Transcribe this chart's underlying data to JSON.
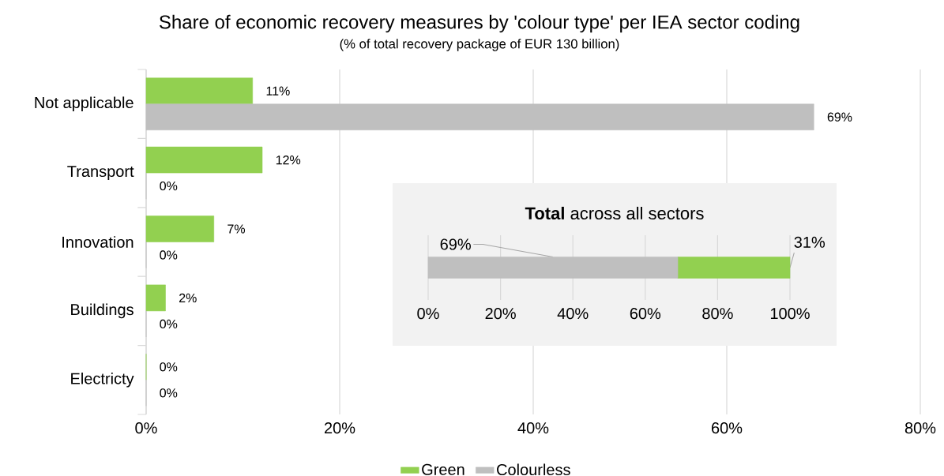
{
  "chart_data": [
    {
      "type": "bar",
      "orientation": "horizontal",
      "title": "Share of economic recovery measures by 'colour type' per IEA sector coding",
      "subtitle": "(% of total recovery package of EUR 130 billion)",
      "categories": [
        "Not applicable",
        "Transport",
        "Innovation",
        "Buildings",
        "Electricty"
      ],
      "series": [
        {
          "name": "Green",
          "color": "#92d050",
          "values": [
            11,
            12,
            7,
            2,
            0
          ],
          "value_labels": [
            "11%",
            "12%",
            "7%",
            "2%",
            "0%"
          ]
        },
        {
          "name": "Colourless",
          "color": "#bfbfbf",
          "values": [
            69,
            0,
            0,
            0,
            0
          ],
          "value_labels": [
            "69%",
            "0%",
            "0%",
            "0%",
            "0%"
          ]
        }
      ],
      "xlim": [
        0,
        80
      ],
      "xticks": [
        {
          "value": 0,
          "label": "0%"
        },
        {
          "value": 20,
          "label": "20%"
        },
        {
          "value": 40,
          "label": "40%"
        },
        {
          "value": 60,
          "label": "60%"
        },
        {
          "value": 80,
          "label": "80%"
        }
      ],
      "grid": "x",
      "legend": "bottom"
    },
    {
      "type": "bar",
      "orientation": "horizontal",
      "stacked": true,
      "title": "**Total** across all sectors",
      "categories": [
        null
      ],
      "series": [
        {
          "color": "#bfbfbf",
          "values": [
            69
          ],
          "value_labels": [
            "69%"
          ]
        },
        {
          "color": "#92d050",
          "values": [
            31
          ],
          "value_labels": [
            "31%"
          ]
        }
      ],
      "xlim": [
        0,
        100
      ],
      "xticks": [
        {
          "value": 0,
          "label": "0%"
        },
        {
          "value": 20,
          "label": "20%"
        },
        {
          "value": 40,
          "label": "40%"
        },
        {
          "value": 60,
          "label": "60%"
        },
        {
          "value": 80,
          "label": "80%"
        },
        {
          "value": 100,
          "label": "100%"
        }
      ],
      "grid": "x"
    }
  ]
}
